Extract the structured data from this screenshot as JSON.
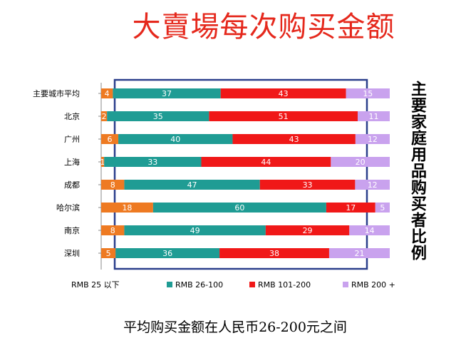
{
  "title": "大賣場每次购买金额",
  "side_label": "主要家庭用品购买者比例",
  "subtitle": "平均购买金额在人民币26-200元之间",
  "chart_data": {
    "type": "bar",
    "stacked": true,
    "orientation": "horizontal",
    "percent_stacked": true,
    "categories": [
      "主要城市平均",
      "北京",
      "广州",
      "上海",
      "成都",
      "哈尔滨",
      "南京",
      "深圳"
    ],
    "series": [
      {
        "name": "RMB 25 以下",
        "color": "#ee7a22",
        "values": [
          4,
          2,
          6,
          1,
          8,
          18,
          8,
          5
        ]
      },
      {
        "name": "RMB 26-100",
        "color": "#1f9c94",
        "values": [
          37,
          35,
          40,
          33,
          47,
          60,
          49,
          36
        ]
      },
      {
        "name": "RMB 101-200",
        "color": "#f01818",
        "values": [
          43,
          51,
          43,
          44,
          33,
          17,
          29,
          38
        ]
      },
      {
        "name": "RMB 200 +",
        "color": "#c9a2ee",
        "values": [
          15,
          11,
          12,
          20,
          12,
          5,
          14,
          21
        ]
      }
    ],
    "legend_position": "bottom",
    "grid": false
  }
}
